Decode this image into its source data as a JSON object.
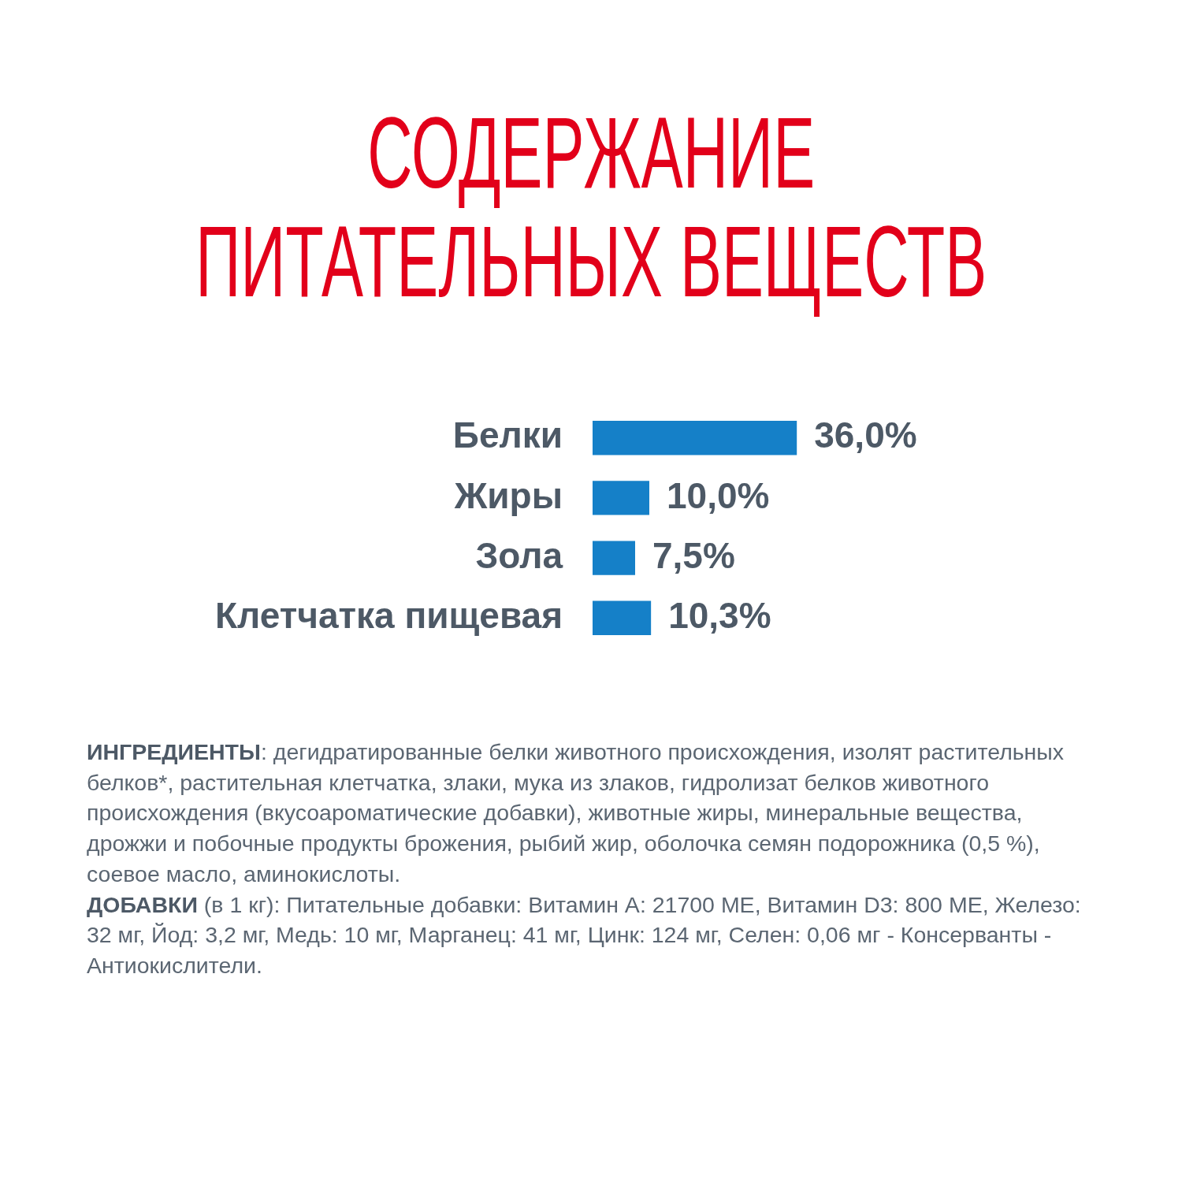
{
  "chart_data": {
    "type": "bar",
    "orientation": "horizontal",
    "tick_labels": "y",
    "title": "СОДЕРЖАНИЕ ПИТАТЕЛЬНЫХ ВЕЩЕСТВ",
    "categories": [
      "Белки",
      "Жиры",
      "Зола",
      "Клетчатка пищевая"
    ],
    "values": [
      36,
      10,
      7.5,
      10.3
    ],
    "value_labels": [
      "36,0%",
      "10,0%",
      "7,5%",
      "10,3%"
    ],
    "color": "#1580c8",
    "annotations": [
      "ИНГРЕДИЕНТЫ: дегидратированные белки животного происхождения, изолят растительных белков*, растительная клетчатка, злаки, мука из злаков, гидролизат белков животного происхождения (вкусоароматические добавки), животные жиры, минеральные вещества, дрожжи и побочные продукты брожения, рыбий жир, оболочка семян подорожника (0,5 %), соевое масло, аминокислоты.",
      "ДОБАВКИ (в 1 кг): Питательные добавки: Витамин А: 21700 МЕ, Витамин D3: 800 МЕ, Железо: 32 мг, Йод: 3,2 мг, Медь: 10 мг, Марганец: 41 мг, Цинк: 124 мг, Селен: 0,06 мг - Консерванты - Антиокислители."
    ]
  }
}
